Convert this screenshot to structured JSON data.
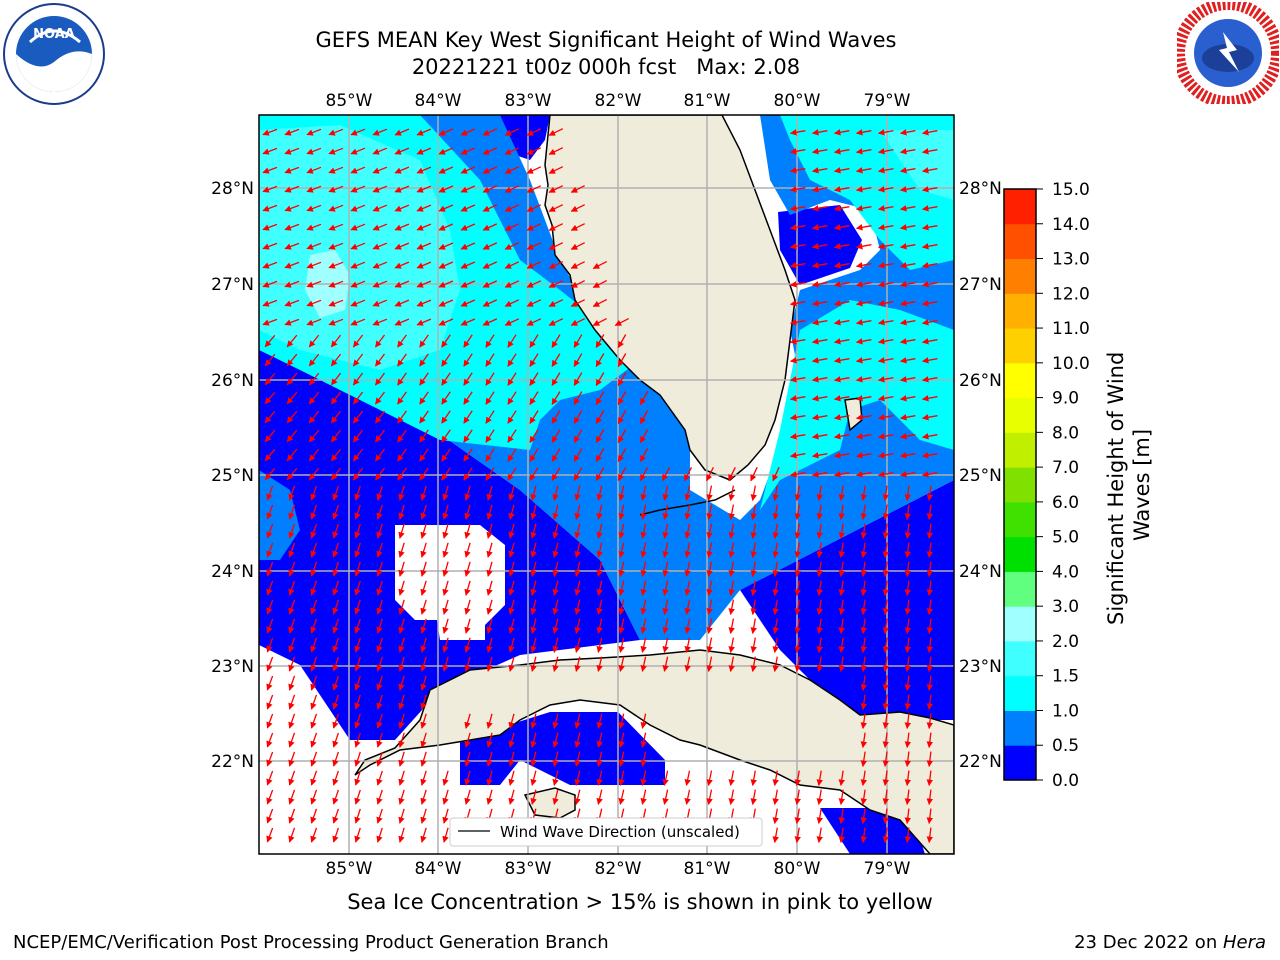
{
  "title_line1": "GEFS MEAN Key West Significant Height of Wind Waves",
  "title_line2": "20221221 t00z 000h fcst   Max: 2.08",
  "subtitle": "Sea Ice Concentration > 15% is shown in pink to yellow",
  "credit": "NCEP/EMC/Verification Post Processing Product Generation Branch",
  "date_text": "23 Dec 2022 on ",
  "date_machine": "Hera",
  "legend_label": "Wind Wave Direction (unscaled)",
  "colorbar_label_line1": "Significant Height of Wind",
  "colorbar_label_line2": "Waves [m]",
  "lon_ticks": [
    "85°W",
    "84°W",
    "83°W",
    "82°W",
    "81°W",
    "80°W",
    "79°W"
  ],
  "lat_ticks": [
    "28°N",
    "27°N",
    "26°N",
    "25°N",
    "24°N",
    "23°N",
    "22°N"
  ],
  "colorbar_ticks": [
    "15.0",
    "14.0",
    "13.0",
    "12.0",
    "11.0",
    "10.0",
    "9.0",
    "8.0",
    "7.0",
    "6.0",
    "5.0",
    "4.0",
    "3.0",
    "2.0",
    "1.5",
    "1.0",
    "0.5",
    "0.0"
  ],
  "colorbar_colors": [
    "#0000ff",
    "#0080ff",
    "#00ffff",
    "#40ffff",
    "#a0ffff",
    "#60ff80",
    "#00e000",
    "#40e000",
    "#80e000",
    "#c0f000",
    "#e8ff00",
    "#ffff00",
    "#ffd000",
    "#ffb000",
    "#ff8000",
    "#ff5000",
    "#ff2000",
    "#ff0000"
  ],
  "colors": {
    "land": "#efecdc",
    "arrow": "#ff0000",
    "grid": "#b0b0b0",
    "band_0": "#0000ff",
    "band_1": "#0080ff",
    "band_2": "#00ffff",
    "band_3": "#40ffff",
    "band_4": "#a0ffff"
  }
}
